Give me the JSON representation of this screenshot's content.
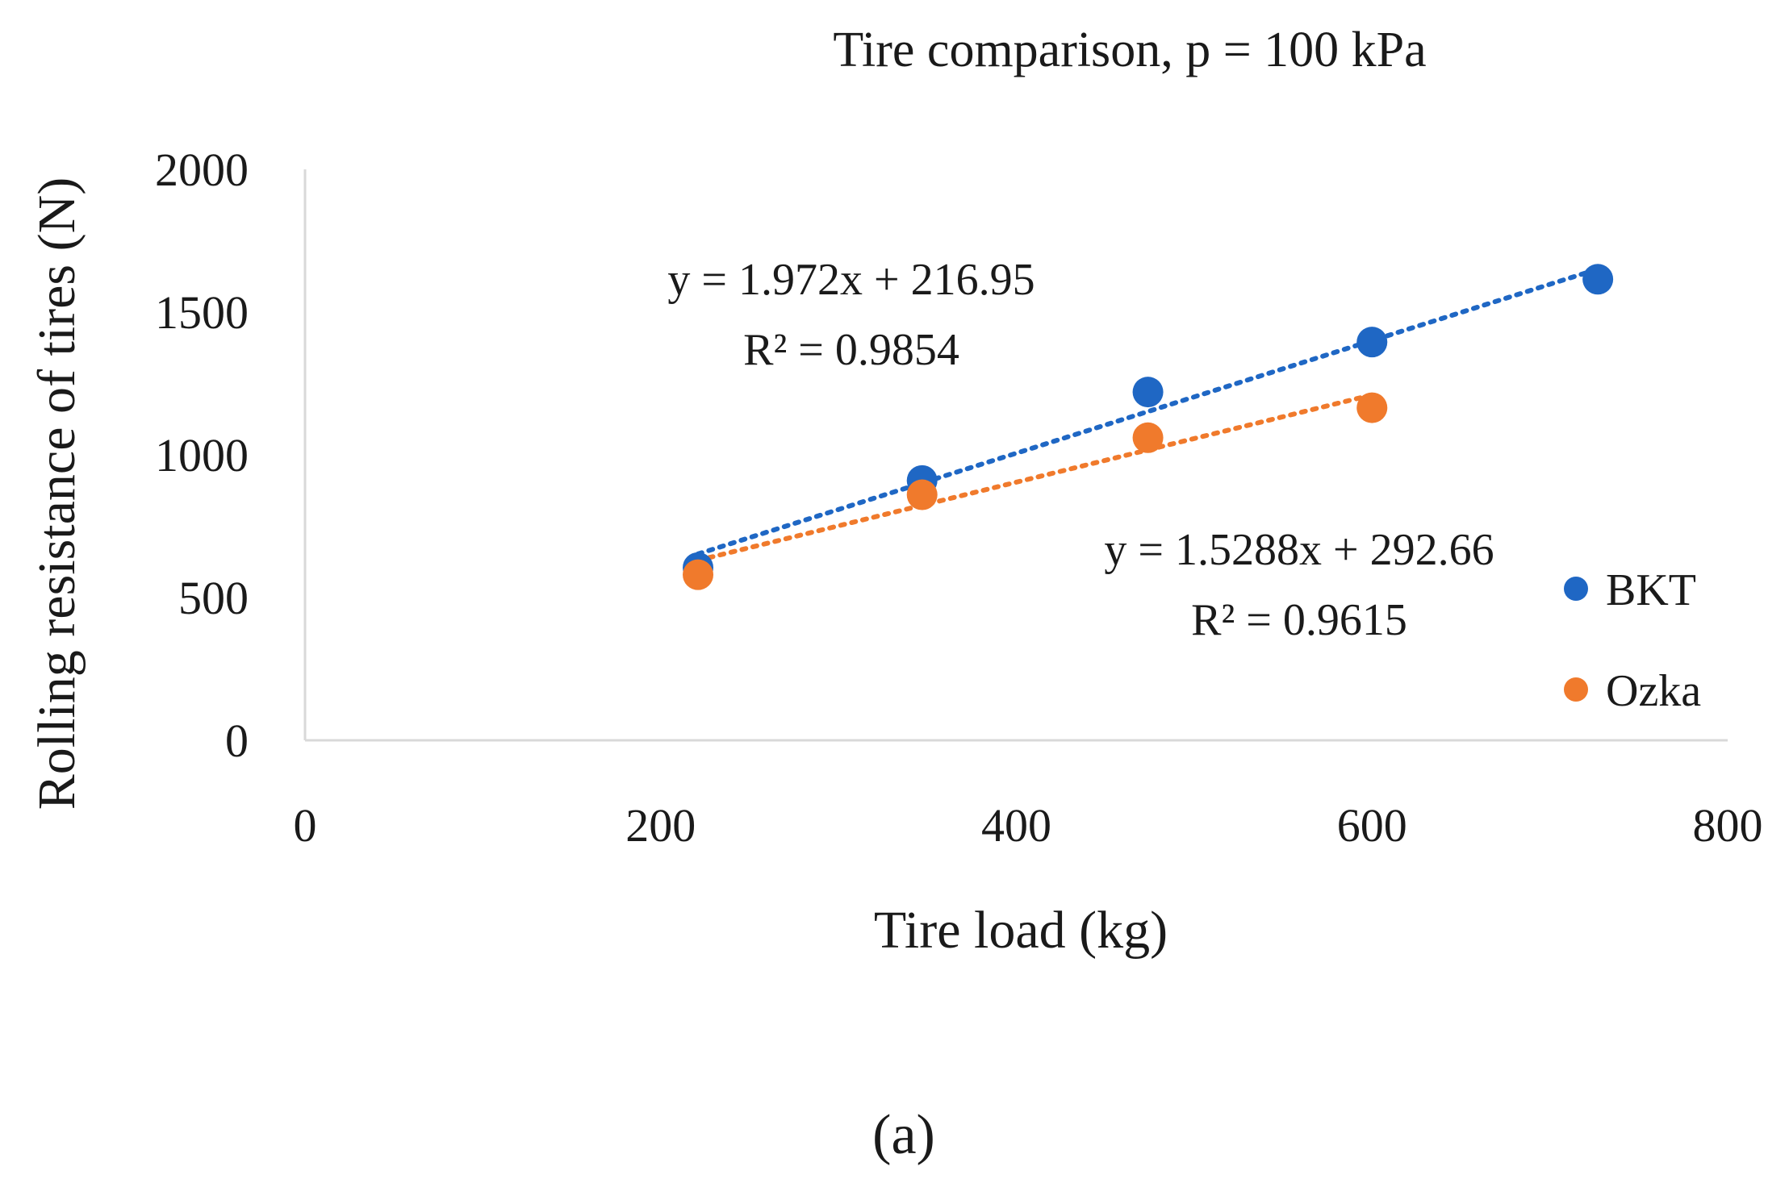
{
  "chart_data": {
    "type": "scatter",
    "title": "Tire comparison, p = 100 kPa",
    "xlabel": "Tire load (kg)",
    "ylabel": "Rolling resistance of tires (N)",
    "xlim": [
      0,
      800
    ],
    "ylim": [
      0,
      2000
    ],
    "xticks": [
      0,
      200,
      400,
      600,
      800
    ],
    "yticks": [
      0,
      500,
      1000,
      1500,
      2000
    ],
    "xtick_labels": [
      "0",
      "200",
      "400",
      "600",
      "800"
    ],
    "ytick_labels": [
      "0",
      "500",
      "1000",
      "1500",
      "2000"
    ],
    "grid": false,
    "legend_position": "right",
    "series": [
      {
        "name": "BKT",
        "color": "#1f67c4",
        "x": [
          221,
          347,
          474,
          600,
          727
        ],
        "y": [
          605,
          910,
          1220,
          1395,
          1615
        ],
        "trendline": {
          "slope": 1.972,
          "intercept": 216.95,
          "equation": "y = 1.972x + 216.95",
          "r2": "R² = 0.9854"
        }
      },
      {
        "name": "Ozka",
        "color": "#f07a2c",
        "x": [
          221,
          347,
          474,
          600
        ],
        "y": [
          580,
          860,
          1060,
          1165
        ],
        "trendline": {
          "slope": 1.5288,
          "intercept": 292.66,
          "equation": "y = 1.5288x + 292.66",
          "r2": "R² = 0.9615"
        }
      }
    ]
  },
  "caption": "(a)",
  "colors": {
    "axis": "#d9d9d9",
    "text": "#1a1a1a"
  }
}
